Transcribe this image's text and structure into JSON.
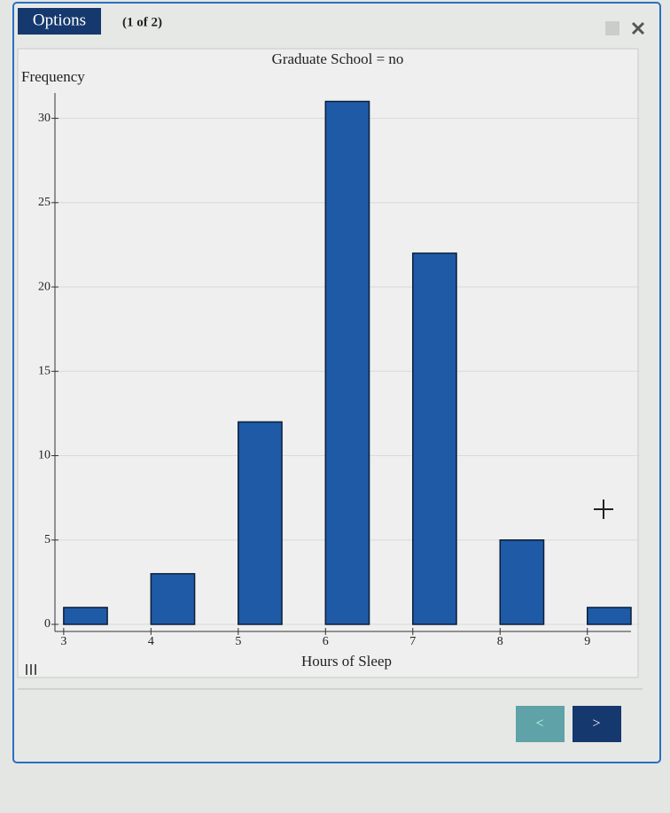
{
  "ui": {
    "options_button": "Options",
    "page_indicator": "(1 of 2)",
    "prev_button": "<",
    "next_button": ">"
  },
  "chart_data": {
    "type": "bar",
    "title": "Graduate School = no",
    "y_label": "Frequency",
    "x_label": "Hours of Sleep",
    "x": [
      3,
      4,
      5,
      6,
      7,
      8,
      9
    ],
    "values": [
      1,
      3,
      12,
      31,
      22,
      5,
      1
    ],
    "color": "#1f5aa6",
    "xlim": [
      2.9,
      9.5
    ],
    "xticks": [
      3,
      4,
      5,
      6,
      7,
      8,
      9
    ],
    "ylim": [
      0,
      31.5
    ],
    "yticks": [
      0,
      5,
      10,
      15,
      20,
      25,
      30
    ],
    "grid": true
  }
}
